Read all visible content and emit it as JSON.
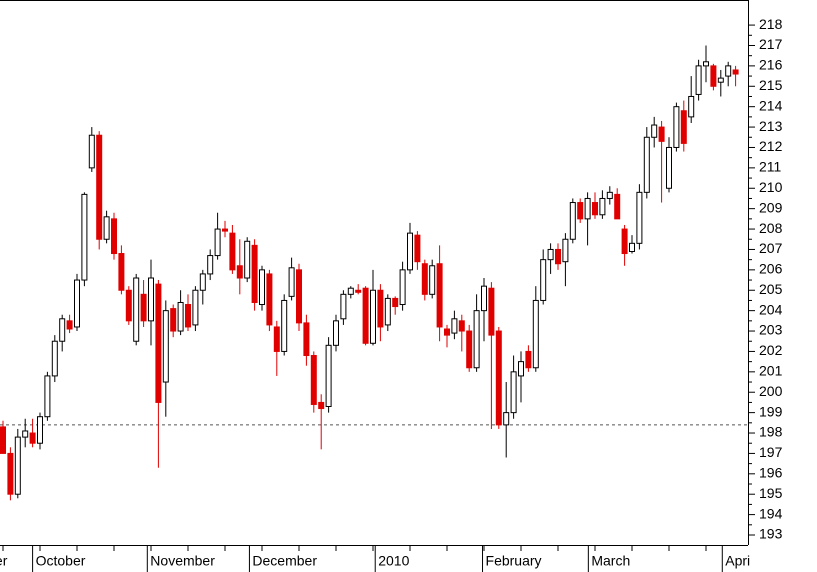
{
  "chart_data": {
    "type": "candlestick",
    "series": {
      "open": [
        198.3,
        197,
        195,
        197.8,
        198,
        197.5,
        198.8,
        200.8,
        202.5,
        203.5,
        203.2,
        205.5,
        211,
        212.6,
        207.5,
        208.5,
        206.8,
        205,
        202.5,
        204.8,
        203.5,
        205.3,
        200.5,
        204.1,
        203,
        204.3,
        203.3,
        205,
        205.8,
        206.7,
        208,
        207.8,
        206.2,
        205.6,
        207.2,
        204.3,
        205.8,
        203.2,
        202,
        204.7,
        206,
        203.4,
        201.8,
        199.5,
        199.3,
        202.3,
        203.6,
        204.8,
        205,
        205.1,
        202.4,
        205,
        203.3,
        204.6,
        204.3,
        206,
        207.7,
        206.3,
        204.8,
        206.3,
        203.1,
        202.9,
        203.5,
        203,
        201.2,
        204,
        205.1,
        203,
        198.4,
        199,
        200.8,
        202,
        201.2,
        204.5,
        206.5,
        207,
        206.4,
        207.5,
        209.3,
        208.5,
        209.3,
        208.7,
        209.5,
        209.7,
        208,
        206.9,
        207.3,
        209.8,
        212.5,
        213,
        210,
        212,
        213.8,
        213.5,
        214.6,
        216,
        216,
        215.2,
        215.5,
        215.8
      ],
      "high": [
        198.6,
        197.3,
        198.2,
        198.7,
        198.7,
        199,
        201,
        202.8,
        203.8,
        203.8,
        205.8,
        209.8,
        213,
        212.8,
        208.9,
        208.8,
        207.2,
        205.2,
        205.8,
        205.5,
        206.5,
        205.5,
        204.5,
        204.3,
        205,
        204.8,
        205.2,
        206,
        207,
        208.8,
        208.4,
        208.2,
        207.5,
        207.6,
        207.5,
        206.2,
        206,
        203.5,
        204.8,
        206.6,
        206.3,
        203.8,
        202,
        199.9,
        202.7,
        203.8,
        205,
        205.2,
        205.3,
        205.2,
        206,
        205.3,
        204.8,
        204.7,
        206.4,
        208.3,
        207.9,
        206.5,
        206.5,
        207.2,
        203.3,
        204,
        203.8,
        203.3,
        204.8,
        205.6,
        205.4,
        203.2,
        200.5,
        201.8,
        202,
        202.3,
        205.2,
        207,
        207.3,
        207.3,
        207.8,
        209.5,
        209.5,
        209.8,
        209.8,
        209.9,
        210.1,
        210,
        208.2,
        207.7,
        210.2,
        213,
        213.5,
        213.3,
        212.5,
        214.2,
        214.3,
        215.5,
        216.3,
        217,
        216.1,
        215.8,
        216.2,
        216
      ],
      "low": [
        197,
        194.7,
        194.8,
        197.3,
        197.3,
        197.2,
        198.6,
        200.5,
        202,
        202.9,
        203,
        205.2,
        210.8,
        207,
        207.3,
        206.5,
        204.8,
        203.3,
        202.3,
        203.2,
        202.3,
        196.3,
        198.8,
        202.7,
        202.8,
        203,
        203,
        204.3,
        205.5,
        206.5,
        207.6,
        205.8,
        204.8,
        205.4,
        204,
        204,
        203,
        200.8,
        201.8,
        204.5,
        203,
        201.3,
        199,
        197.2,
        199,
        202,
        203.3,
        204.6,
        204.8,
        202.3,
        202.3,
        202.5,
        203,
        203.8,
        204,
        205.8,
        206,
        204.5,
        204.6,
        202.5,
        202.2,
        202.6,
        202,
        201,
        201,
        202.5,
        198.2,
        198.2,
        196.8,
        198.7,
        199.5,
        201,
        201,
        204.3,
        205.8,
        206,
        205.2,
        207.3,
        208.3,
        207.2,
        208.5,
        208.5,
        209.2,
        208.5,
        206.2,
        206.8,
        207,
        209.5,
        212,
        209.3,
        209.8,
        211.8,
        211.8,
        213.2,
        214.3,
        215.2,
        214.8,
        214.5,
        215,
        215
      ],
      "close": [
        197,
        195,
        197.8,
        198.1,
        197.5,
        198.8,
        200.8,
        202.5,
        203.6,
        203.1,
        205.5,
        209.7,
        212.6,
        207.5,
        208.6,
        206.8,
        205,
        203.5,
        205.6,
        203.5,
        205.6,
        199.5,
        204,
        203,
        204.4,
        203.2,
        205,
        205.8,
        206.7,
        208,
        207.9,
        206,
        205.6,
        207.4,
        204.4,
        206,
        203.3,
        202,
        204.5,
        206.1,
        203.4,
        201.8,
        199.4,
        199.2,
        202.3,
        203.5,
        204.8,
        205.1,
        204.9,
        202.4,
        205,
        203.2,
        204.6,
        204.2,
        206,
        207.8,
        206.4,
        204.8,
        206.2,
        203.2,
        202.8,
        203.6,
        203,
        201.2,
        204,
        205.2,
        202.8,
        198.4,
        199,
        201,
        201.5,
        201.2,
        204.5,
        206.5,
        207,
        206.3,
        207.5,
        209.3,
        208.5,
        209.5,
        208.7,
        209.5,
        209.8,
        208.5,
        206.8,
        207.3,
        209.8,
        212.5,
        213.1,
        212.3,
        212,
        214,
        212.2,
        214.5,
        216,
        216.2,
        215,
        215.4,
        216,
        215.6
      ],
      "up_color": "#ffffff",
      "down_color": "#e00000"
    },
    "ylim": [
      192.51,
      219.23
    ],
    "yticks": [
      193,
      194,
      195,
      196,
      197,
      198,
      199,
      200,
      201,
      202,
      203,
      204,
      205,
      206,
      207,
      208,
      209,
      210,
      211,
      212,
      213,
      214,
      215,
      216,
      217,
      218
    ],
    "reference_line": 198.4,
    "date_ticks": [
      {
        "value": -1.5,
        "label": "er"
      },
      {
        "value": 4,
        "label": "October"
      },
      {
        "value": 19.5,
        "label": "November"
      },
      {
        "value": 33.3,
        "label": "December"
      },
      {
        "value": 50.3,
        "label": "2010"
      },
      {
        "value": 64.8,
        "label": "February"
      },
      {
        "value": 79.1,
        "label": "March"
      },
      {
        "value": 97.2,
        "label": "Apri"
      }
    ]
  }
}
